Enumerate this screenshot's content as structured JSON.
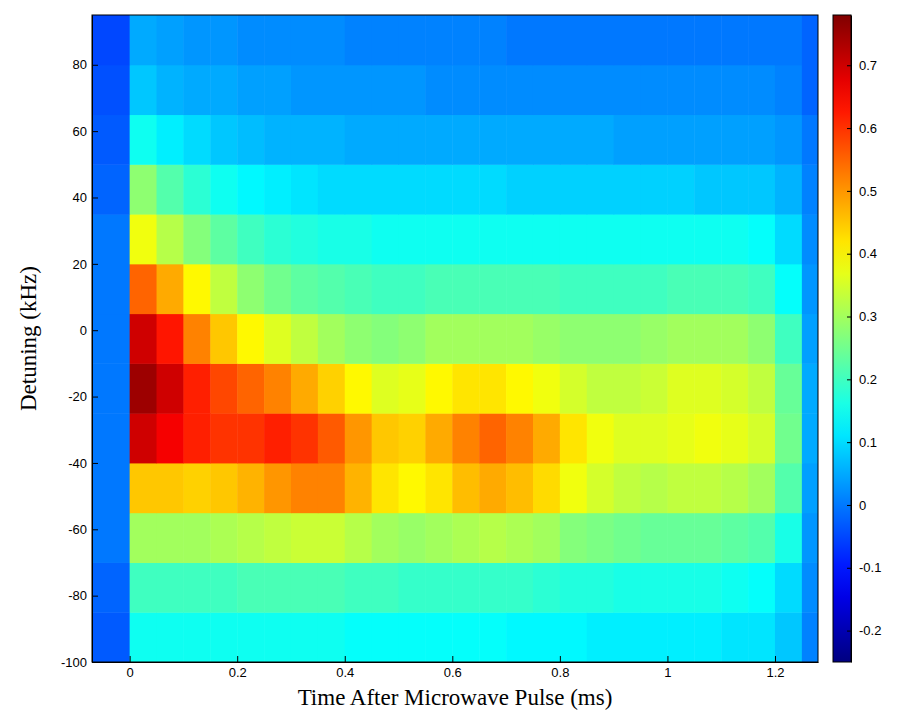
{
  "chart_data": {
    "type": "heatmap",
    "x_label": "Time After Microwave Pulse (ms)",
    "y_label": "Detuning (kHz)",
    "xlim": [
      -0.07,
      1.28
    ],
    "ylim": [
      -100,
      95
    ],
    "xticks": [
      0,
      0.2,
      0.4,
      0.6,
      0.8,
      1,
      1.2
    ],
    "yticks": [
      -100,
      -80,
      -60,
      -40,
      -20,
      0,
      20,
      40,
      60,
      80
    ],
    "x_edges": [
      -0.07,
      0,
      0.05,
      0.1,
      0.15,
      0.2,
      0.25,
      0.3,
      0.35,
      0.4,
      0.45,
      0.5,
      0.55,
      0.6,
      0.65,
      0.7,
      0.75,
      0.8,
      0.85,
      0.9,
      0.95,
      1,
      1.05,
      1.1,
      1.15,
      1.2,
      1.25,
      1.28
    ],
    "y_edges": [
      -100,
      -85,
      -70,
      -55,
      -40,
      -25,
      -10,
      5,
      20,
      35,
      50,
      65,
      80,
      95
    ],
    "cells": [
      [
        -0.03,
        0.15,
        0.15,
        0.15,
        0.15,
        0.15,
        0.15,
        0.15,
        0.15,
        0.14,
        0.14,
        0.14,
        0.14,
        0.14,
        0.14,
        0.13,
        0.13,
        0.13,
        0.12,
        0.12,
        0.12,
        0.12,
        0.12,
        0.11,
        0.11,
        0.08,
        0.01
      ],
      [
        -0.02,
        0.2,
        0.2,
        0.2,
        0.2,
        0.21,
        0.21,
        0.21,
        0.21,
        0.2,
        0.2,
        0.19,
        0.19,
        0.19,
        0.19,
        0.19,
        0.18,
        0.17,
        0.17,
        0.16,
        0.16,
        0.16,
        0.16,
        0.15,
        0.14,
        0.1,
        0.02
      ],
      [
        0,
        0.3,
        0.3,
        0.3,
        0.31,
        0.32,
        0.33,
        0.34,
        0.34,
        0.32,
        0.3,
        0.29,
        0.3,
        0.31,
        0.32,
        0.31,
        0.3,
        0.27,
        0.26,
        0.25,
        0.24,
        0.24,
        0.24,
        0.23,
        0.22,
        0.16,
        0.03
      ],
      [
        0,
        0.45,
        0.45,
        0.44,
        0.45,
        0.47,
        0.5,
        0.52,
        0.52,
        0.47,
        0.42,
        0.4,
        0.42,
        0.46,
        0.48,
        0.46,
        0.43,
        0.38,
        0.35,
        0.33,
        0.32,
        0.33,
        0.33,
        0.32,
        0.3,
        0.22,
        0.04
      ],
      [
        0,
        0.7,
        0.66,
        0.62,
        0.6,
        0.6,
        0.62,
        0.6,
        0.56,
        0.5,
        0.45,
        0.44,
        0.48,
        0.52,
        0.55,
        0.52,
        0.48,
        0.42,
        0.38,
        0.36,
        0.36,
        0.37,
        0.38,
        0.37,
        0.35,
        0.25,
        0.05
      ],
      [
        0,
        0.75,
        0.7,
        0.62,
        0.58,
        0.55,
        0.52,
        0.48,
        0.44,
        0.4,
        0.36,
        0.37,
        0.4,
        0.42,
        0.42,
        0.4,
        0.38,
        0.35,
        0.33,
        0.33,
        0.34,
        0.36,
        0.36,
        0.35,
        0.33,
        0.24,
        0.05
      ],
      [
        0,
        0.7,
        0.63,
        0.52,
        0.45,
        0.4,
        0.36,
        0.33,
        0.3,
        0.28,
        0.27,
        0.28,
        0.3,
        0.3,
        0.3,
        0.3,
        0.29,
        0.28,
        0.28,
        0.28,
        0.29,
        0.3,
        0.3,
        0.3,
        0.28,
        0.2,
        0.04
      ],
      [
        0,
        0.55,
        0.48,
        0.4,
        0.33,
        0.28,
        0.25,
        0.23,
        0.22,
        0.21,
        0.2,
        0.2,
        0.21,
        0.21,
        0.21,
        0.21,
        0.21,
        0.2,
        0.2,
        0.2,
        0.2,
        0.21,
        0.21,
        0.21,
        0.2,
        0.14,
        0.03
      ],
      [
        0,
        0.38,
        0.32,
        0.27,
        0.23,
        0.2,
        0.18,
        0.17,
        0.16,
        0.16,
        0.15,
        0.15,
        0.15,
        0.15,
        0.15,
        0.15,
        0.15,
        0.15,
        0.15,
        0.15,
        0.15,
        0.15,
        0.15,
        0.15,
        0.14,
        0.1,
        0.02
      ],
      [
        -0.02,
        0.28,
        0.22,
        0.18,
        0.15,
        0.13,
        0.12,
        0.11,
        0.1,
        0.1,
        0.1,
        0.1,
        0.1,
        0.1,
        0.1,
        0.09,
        0.09,
        0.09,
        0.09,
        0.09,
        0.09,
        0.09,
        0.08,
        0.08,
        0.08,
        0.06,
        0.01
      ],
      [
        -0.03,
        0.15,
        0.12,
        0.1,
        0.08,
        0.07,
        0.06,
        0.06,
        0.06,
        0.05,
        0.05,
        0.05,
        0.05,
        0.05,
        0.05,
        0.05,
        0.05,
        0.05,
        0.05,
        0.04,
        0.04,
        0.04,
        0.04,
        0.04,
        0.04,
        0.03,
        0
      ],
      [
        -0.04,
        0.08,
        0.06,
        0.05,
        0.05,
        0.04,
        0.04,
        0.03,
        0.03,
        0.03,
        0.03,
        0.03,
        0.02,
        0.02,
        0.02,
        0.02,
        0.02,
        0.02,
        0.02,
        0.02,
        0.02,
        0.02,
        0.02,
        0.02,
        0.02,
        0.01,
        -0.02
      ],
      [
        -0.05,
        0.05,
        0.04,
        0.03,
        0.03,
        0.02,
        0.02,
        0.02,
        0.02,
        0.01,
        0.01,
        0.01,
        0.01,
        0.01,
        0.01,
        0,
        0,
        0,
        0,
        0,
        0,
        0,
        0,
        0,
        0,
        0,
        -0.02
      ]
    ],
    "colorbar": {
      "range": [
        -0.25,
        0.78
      ],
      "ticks": [
        -0.2,
        -0.1,
        0,
        0.1,
        0.2,
        0.3,
        0.4,
        0.5,
        0.6,
        0.7
      ]
    },
    "grid": false
  }
}
